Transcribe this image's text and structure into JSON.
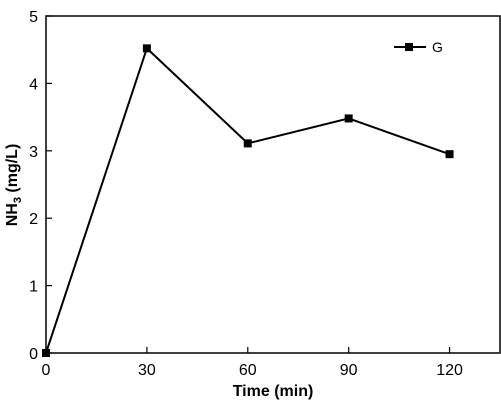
{
  "chart_data": {
    "type": "line",
    "xlabel": "Time (min)",
    "ylabel_main": "NH",
    "ylabel_sub": "3",
    "ylabel_unit": " (mg/L)",
    "xlim": [
      0,
      135
    ],
    "ylim": [
      0,
      5
    ],
    "x_ticks": [
      0,
      30,
      60,
      90,
      120
    ],
    "y_ticks": [
      0,
      1,
      2,
      3,
      4,
      5
    ],
    "grid": false,
    "legend_position": "top-right",
    "series": [
      {
        "name": "G",
        "color": "#000000",
        "marker": "square",
        "x": [
          0,
          30,
          60,
          90,
          120
        ],
        "y": [
          0,
          4.52,
          3.11,
          3.48,
          2.95
        ]
      }
    ]
  }
}
